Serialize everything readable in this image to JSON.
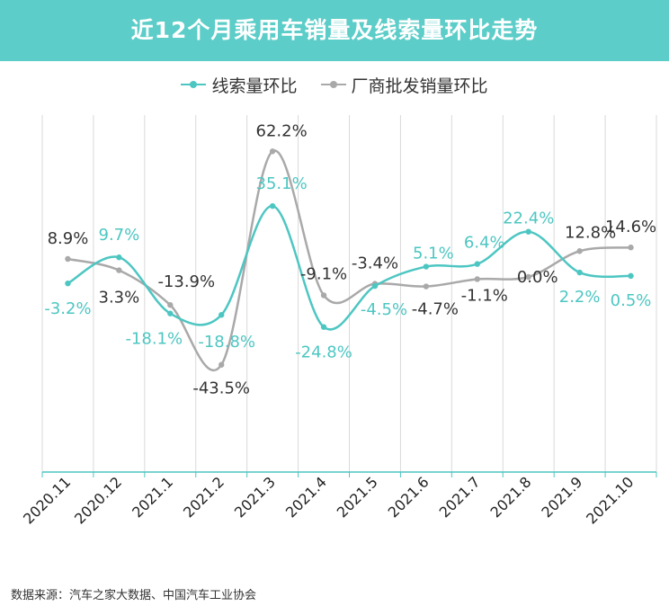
{
  "header": {
    "title": "近12个月乘用车销量及线索量环比走势"
  },
  "source_note": "数据来源：汽车之家大数据、中国汽车工业协会",
  "colors": {
    "banner": "#5ccdc8",
    "teal": "#4dc6c2",
    "gray": "#a9a9a9",
    "dark_label": "#333333"
  },
  "chart_data": {
    "type": "line",
    "title": "近12个月乘用车销量及线索量环比走势",
    "categories": [
      "2020.11",
      "2020.12",
      "2021.1",
      "2021.2",
      "2021.3",
      "2021.4",
      "2021.5",
      "2021.6",
      "2021.7",
      "2021.8",
      "2021.9",
      "2021.10"
    ],
    "series": [
      {
        "name": "线索量环比",
        "color": "#4dc6c2",
        "values": [
          -3.2,
          9.7,
          -18.1,
          -18.8,
          35.1,
          -24.8,
          -4.5,
          5.1,
          6.4,
          22.4,
          2.2,
          0.5
        ],
        "labels": [
          "-3.2%",
          "9.7%",
          "-18.1%",
          "-18.8%",
          "35.1%",
          "-24.8%",
          "-4.5%",
          "5.1%",
          "6.4%",
          "22.4%",
          "2.2%",
          "0.5%"
        ]
      },
      {
        "name": "厂商批发销量环比",
        "color": "#a9a9a9",
        "values": [
          8.9,
          3.3,
          -13.9,
          -43.5,
          62.2,
          -9.1,
          -3.4,
          -4.7,
          -1.1,
          0.0,
          12.8,
          14.6
        ],
        "labels": [
          "8.9%",
          "3.3%",
          "-13.9%",
          "-43.5%",
          "62.2%",
          "-9.1%",
          "-3.4%",
          "-4.7%",
          "-1.1%",
          "0.0%",
          "12.8%",
          "14.6%"
        ]
      }
    ],
    "grid": "vertical",
    "legend_position": "top-center",
    "smooth": true
  }
}
